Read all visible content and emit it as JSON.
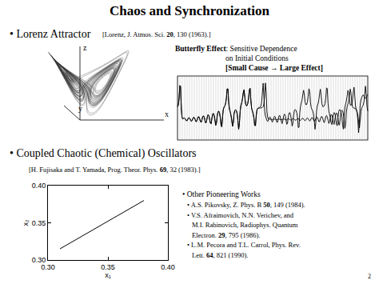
{
  "slide": {
    "title": "Chaos and Synchronization",
    "page": "2",
    "lorenz": {
      "heading": "• Lorenz Attractor",
      "citation": [
        {
          "text": "[Lorenz, J. Atmos. Sci. "
        },
        {
          "text": "20",
          "bold": true
        },
        {
          "text": ", 130 (1963).]"
        }
      ],
      "axis_labels": [
        "z",
        "y",
        "x"
      ],
      "butterfly": [
        [
          {
            "text": "Butterfly Effect",
            "bold": true
          },
          {
            "text": ": Sensitive Dependence"
          }
        ],
        [
          {
            "text": "on Initial Conditions"
          }
        ],
        [
          {
            "text": "[Small Cause → Large Effect]",
            "bold": true
          }
        ]
      ]
    },
    "coupled": {
      "heading": "• Coupled Chaotic (Chemical) Oscillators",
      "citation": [
        {
          "text": "[H. Fujisaka and T. Yamada, Prog. Theor. Phys. "
        },
        {
          "text": "69",
          "bold": true
        },
        {
          "text": ", 32 (1983).]"
        }
      ]
    },
    "other_works": {
      "heading": "• Other Pioneering Works",
      "items": [
        [
          [
            {
              "text": "• A.S. Pikovsky, Z. Phys. B "
            },
            {
              "text": "50",
              "bold": true
            },
            {
              "text": ", 149 (1984)."
            }
          ]
        ],
        [
          [
            {
              "text": "• V.S. Afraimovich, N.N. Verichev, and"
            }
          ],
          [
            {
              "text": "M.I. Rabinovich, Radiophys. Quantum"
            }
          ],
          [
            {
              "text": "Electron. "
            },
            {
              "text": "29",
              "bold": true
            },
            {
              "text": ", 795 (1986)."
            }
          ]
        ],
        [
          [
            {
              "text": "• L.M. Pecora and T.L. Carrol, Phys. Rev."
            }
          ],
          [
            {
              "text": "Lett. "
            },
            {
              "text": "64",
              "bold": true
            },
            {
              "text": ", 821 (1990)."
            }
          ]
        ]
      ]
    }
  },
  "chart_data": {
    "type": "line",
    "x": [
      0.31,
      0.38
    ],
    "values": [
      0.315,
      0.38
    ],
    "color": "#000000",
    "line_style": "solid",
    "x_label": "x₁",
    "y_label": "x₂",
    "xlim": [
      0.3,
      0.4
    ],
    "ylim": [
      0.3,
      0.4
    ],
    "xticks": [
      {
        "value": 0.3,
        "label": "0.30"
      },
      0.35,
      {
        "value": 0.4,
        "label": "0.40"
      }
    ],
    "yticks": [
      {
        "value": 0.3,
        "label": "0.30"
      },
      0.35,
      {
        "value": 0.4,
        "label": "0.40"
      }
    ],
    "grid": false
  }
}
